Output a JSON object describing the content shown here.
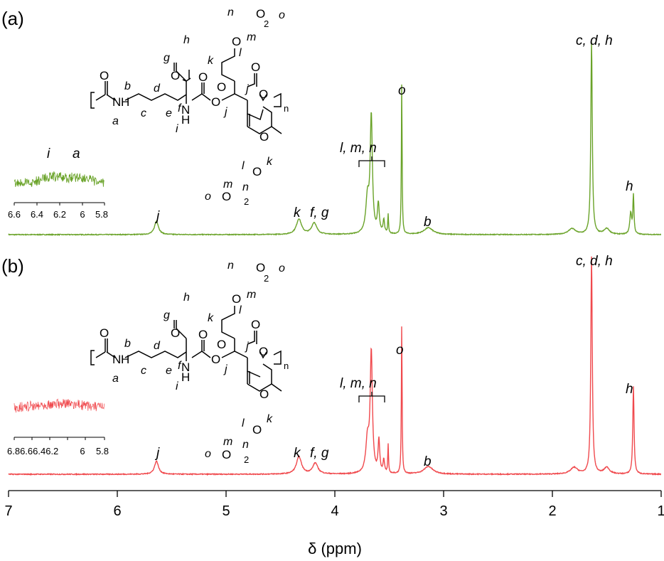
{
  "chart_data": {
    "type": "line",
    "title": "",
    "xlabel": "δ (ppm)",
    "ylabel": "",
    "xlim": [
      7,
      1
    ],
    "x_reversed": true,
    "x_ticks": [
      7,
      6,
      5,
      4,
      3,
      2,
      1
    ],
    "grid": false,
    "colors": {
      "a": "#6aa329",
      "b": "#f0494d"
    },
    "series": [
      {
        "panel": "(a)",
        "color": "#6aa329",
        "baseline": 0,
        "peaks": [
          {
            "ppm": 5.64,
            "height": 0.07,
            "width": 0.022
          },
          {
            "ppm": 4.33,
            "height": 0.08,
            "width": 0.028
          },
          {
            "ppm": 4.19,
            "height": 0.06,
            "width": 0.028
          },
          {
            "ppm": 3.7,
            "height": 0.18,
            "width": 0.018
          },
          {
            "ppm": 3.665,
            "height": 0.6,
            "width": 0.012
          },
          {
            "ppm": 3.6,
            "height": 0.15,
            "width": 0.01
          },
          {
            "ppm": 3.55,
            "height": 0.07,
            "width": 0.008
          },
          {
            "ppm": 3.51,
            "height": 0.1,
            "width": 0.004
          },
          {
            "ppm": 3.385,
            "height": 0.79,
            "width": 0.004
          },
          {
            "ppm": 3.14,
            "height": 0.035,
            "width": 0.05
          },
          {
            "ppm": 1.82,
            "height": 0.03,
            "width": 0.04
          },
          {
            "ppm": 1.64,
            "height": 1.0,
            "width": 0.008
          },
          {
            "ppm": 1.5,
            "height": 0.03,
            "width": 0.03
          },
          {
            "ppm": 1.28,
            "height": 0.11,
            "width": 0.01
          },
          {
            "ppm": 1.255,
            "height": 0.2,
            "width": 0.006
          }
        ],
        "inset": {
          "x_ticks": [
            "6.6",
            "6.4",
            "6.2",
            "6",
            "5.8"
          ],
          "labels": [
            "i",
            "a"
          ]
        }
      },
      {
        "panel": "(b)",
        "color": "#f0494d",
        "baseline": 0,
        "peaks": [
          {
            "ppm": 5.64,
            "height": 0.06,
            "width": 0.022
          },
          {
            "ppm": 4.33,
            "height": 0.08,
            "width": 0.028
          },
          {
            "ppm": 4.18,
            "height": 0.05,
            "width": 0.028
          },
          {
            "ppm": 3.7,
            "height": 0.15,
            "width": 0.018
          },
          {
            "ppm": 3.665,
            "height": 0.55,
            "width": 0.012
          },
          {
            "ppm": 3.595,
            "height": 0.15,
            "width": 0.009
          },
          {
            "ppm": 3.55,
            "height": 0.06,
            "width": 0.008
          },
          {
            "ppm": 3.51,
            "height": 0.13,
            "width": 0.004
          },
          {
            "ppm": 3.385,
            "height": 0.69,
            "width": 0.004
          },
          {
            "ppm": 3.14,
            "height": 0.035,
            "width": 0.05
          },
          {
            "ppm": 1.8,
            "height": 0.03,
            "width": 0.04
          },
          {
            "ppm": 1.64,
            "height": 1.0,
            "width": 0.008
          },
          {
            "ppm": 1.5,
            "height": 0.03,
            "width": 0.03
          },
          {
            "ppm": 1.255,
            "height": 0.4,
            "width": 0.007
          }
        ],
        "inset": {
          "x_ticks": [
            "6.8",
            "6.6",
            "6.4",
            "6.2",
            "6",
            "5.8"
          ],
          "labels": []
        }
      }
    ]
  },
  "panels": {
    "a": {
      "label": "(a)",
      "peak_labels": {
        "j": "j",
        "k": "k",
        "fg": "f, g",
        "lmn": "l, m, n",
        "o": "o",
        "b": "b",
        "cdh": "c, d, h",
        "h": "h"
      },
      "inset_peak_i": "i",
      "inset_peak_a": "a",
      "inset_ticks": [
        "6.6",
        "6.4",
        "6.2",
        "6",
        "5.8"
      ]
    },
    "b": {
      "label": "(b)",
      "peak_labels": {
        "j": "j",
        "k": "k",
        "fg": "f, g",
        "lmn": "l, m, n",
        "o": "o",
        "b": "b",
        "cdh": "c, d, h",
        "h": "h"
      },
      "inset_ticks": [
        "6.86.66.46.2",
        "6",
        "5.8"
      ]
    }
  },
  "structure": {
    "letters": {
      "a": "a",
      "b": "b",
      "c": "c",
      "d": "d",
      "e": "e",
      "f": "f",
      "g": "g",
      "h": "h",
      "i": "i",
      "j": "j",
      "k": "k",
      "l": "l",
      "m": "m",
      "n": "n",
      "o": "o"
    },
    "atoms": {
      "N": "N",
      "H": "H",
      "O": "O"
    },
    "subscripts": {
      "two": "2",
      "repeat": "n"
    }
  },
  "axis": {
    "tick_labels": [
      "7",
      "6",
      "5",
      "4",
      "3",
      "2",
      "1"
    ],
    "title": "δ (ppm)"
  }
}
